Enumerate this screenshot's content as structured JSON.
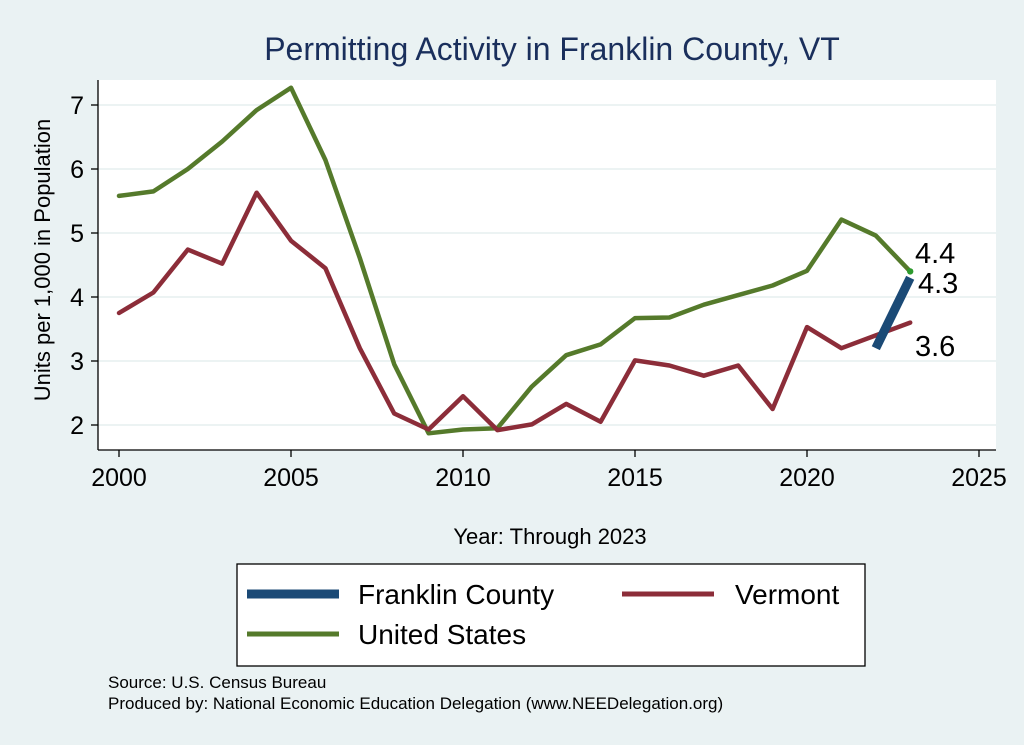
{
  "chart_data": {
    "type": "line",
    "title": "Permitting Activity in Franklin County, VT",
    "xlabel": "Year: Through 2023",
    "ylabel": "Units per 1,000 in Population",
    "xlim": [
      2000,
      2025
    ],
    "ylim": [
      1.75,
      7.5
    ],
    "xticks": [
      2000,
      2005,
      2010,
      2015,
      2020,
      2025
    ],
    "yticks": [
      2,
      3,
      4,
      5,
      6,
      7
    ],
    "grid": true,
    "legend_position": "bottom",
    "series": [
      {
        "name": "Franklin County",
        "color": "#1b4a76",
        "x": [
          2022,
          2023
        ],
        "y": [
          3.2,
          4.3
        ],
        "end_label": "4.3"
      },
      {
        "name": "Vermont",
        "color": "#8c2d39",
        "x": [
          2000,
          2001,
          2002,
          2003,
          2004,
          2005,
          2006,
          2007,
          2008,
          2009,
          2010,
          2011,
          2012,
          2013,
          2014,
          2015,
          2016,
          2017,
          2018,
          2019,
          2020,
          2021,
          2022,
          2023
        ],
        "y": [
          3.75,
          4.07,
          4.74,
          4.52,
          5.63,
          4.88,
          4.45,
          3.2,
          2.18,
          1.93,
          2.45,
          1.92,
          2.01,
          2.33,
          2.05,
          3.01,
          2.93,
          2.77,
          2.93,
          2.25,
          3.53,
          3.2,
          3.4,
          3.6
        ],
        "end_label": "3.6"
      },
      {
        "name": "United States",
        "color": "#557a2b",
        "x": [
          2000,
          2001,
          2002,
          2003,
          2004,
          2005,
          2006,
          2007,
          2008,
          2009,
          2010,
          2011,
          2012,
          2013,
          2014,
          2015,
          2016,
          2017,
          2018,
          2019,
          2020,
          2021,
          2022,
          2023
        ],
        "y": [
          5.58,
          5.65,
          6.0,
          6.43,
          6.92,
          7.27,
          6.14,
          4.61,
          2.95,
          1.87,
          1.93,
          1.95,
          2.6,
          3.09,
          3.26,
          3.67,
          3.68,
          3.88,
          4.03,
          4.18,
          4.41,
          5.21,
          4.96,
          4.4
        ],
        "end_label": "4.4"
      }
    ],
    "legend_order": [
      "Franklin County",
      "Vermont",
      "United States"
    ],
    "notes": [
      "Source: U.S. Census Bureau",
      "Produced by: National Economic Education Delegation (www.NEEDelegation.org)"
    ]
  }
}
